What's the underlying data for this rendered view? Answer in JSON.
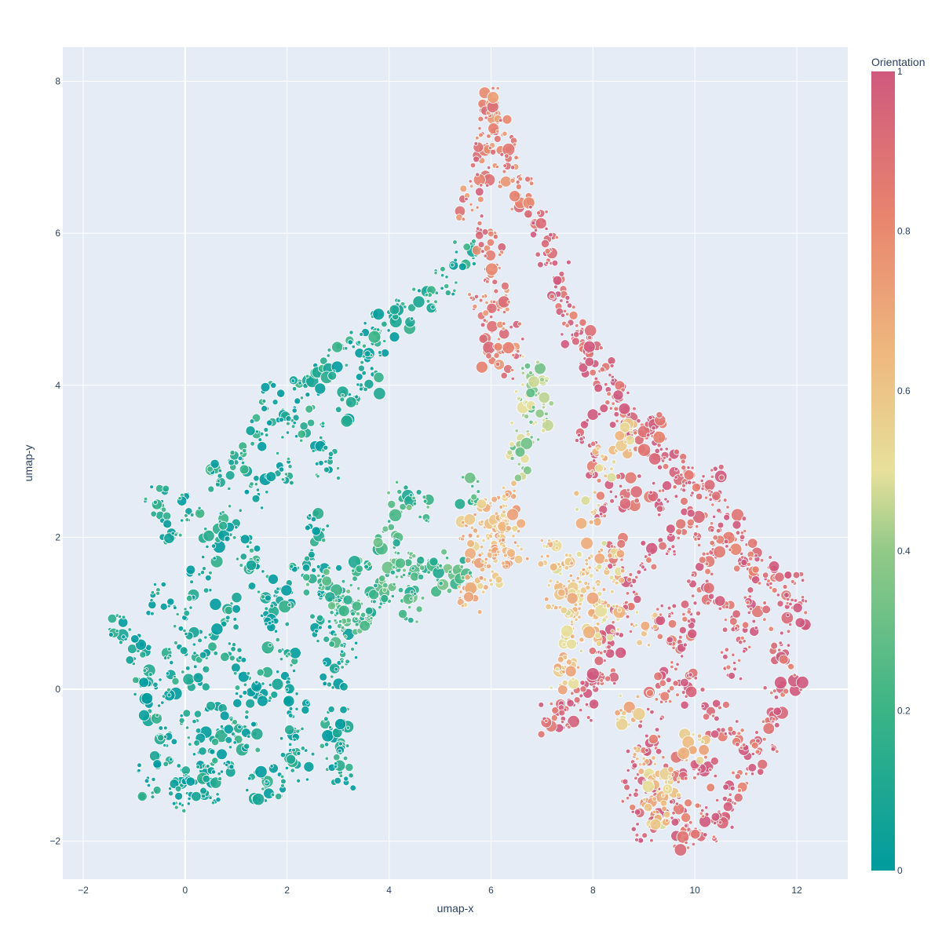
{
  "chart_data": {
    "type": "scatter",
    "xlabel": "umap-x",
    "ylabel": "umap-y",
    "xlim": [
      -2.4,
      13.0
    ],
    "ylim": [
      -2.5,
      8.45
    ],
    "x_ticks": [
      -2,
      0,
      2,
      4,
      6,
      8,
      10,
      12
    ],
    "y_ticks": [
      -2,
      0,
      2,
      4,
      6,
      8
    ],
    "x_tick_labels": [
      "−2",
      "0",
      "2",
      "4",
      "6",
      "8",
      "10",
      "12"
    ],
    "y_tick_labels": [
      "−2",
      "0",
      "2",
      "4",
      "6",
      "8"
    ],
    "colorbar": {
      "title": "Orientation",
      "range": [
        0,
        1
      ],
      "ticks": [
        0,
        0.2,
        0.4,
        0.6,
        0.8,
        1
      ],
      "tick_labels": [
        "0",
        "0.2",
        "0.4",
        "0.6",
        "0.8",
        "1"
      ],
      "colorscale": [
        "#009B9E",
        "#42B7B9",
        "#A7D3D4",
        "#F1F1F1",
        "#E4C1D9",
        "#D691C1",
        "#C75DAB"
      ],
      "colorscale_rendered": [
        "#009B9E",
        "#3BB486",
        "#92C987",
        "#E7E09B",
        "#EEB77E",
        "#E8846E",
        "#CF597E"
      ]
    },
    "clusters": [
      {
        "points": [
          [
            -1.3,
            0.8
          ],
          [
            -0.9,
            0.5
          ],
          [
            -0.8,
            0.1
          ],
          [
            -0.6,
            -0.3
          ],
          [
            -0.4,
            -0.8
          ],
          [
            -0.2,
            -1.2
          ],
          [
            0.0,
            -1.4
          ],
          [
            0.2,
            -1.2
          ],
          [
            0.4,
            -0.8
          ],
          [
            0.6,
            -0.4
          ],
          [
            0.2,
            0.2
          ],
          [
            -0.2,
            0.4
          ],
          [
            0.4,
            0.6
          ],
          [
            0.0,
            0.9
          ],
          [
            -0.5,
            1.2
          ],
          [
            0.3,
            1.4
          ],
          [
            0.8,
            1.0
          ],
          [
            1.0,
            0.4
          ],
          [
            1.2,
            0.0
          ],
          [
            1.0,
            -0.5
          ],
          [
            0.7,
            -0.9
          ],
          [
            0.5,
            -1.3
          ],
          [
            -0.7,
            -1.2
          ],
          [
            -0.4,
            0.0
          ],
          [
            0.1,
            -0.5
          ]
        ],
        "orientation": 0.05
      },
      {
        "points": [
          [
            -0.6,
            2.5
          ],
          [
            -0.3,
            2.1
          ],
          [
            0.1,
            2.4
          ],
          [
            0.5,
            1.9
          ],
          [
            0.9,
            2.2
          ],
          [
            1.2,
            1.8
          ],
          [
            1.4,
            2.6
          ],
          [
            1.1,
            3.0
          ],
          [
            1.5,
            3.4
          ],
          [
            1.7,
            3.8
          ],
          [
            2.0,
            3.5
          ],
          [
            2.3,
            3.9
          ],
          [
            2.6,
            4.1
          ],
          [
            3.0,
            4.3
          ],
          [
            3.4,
            4.5
          ],
          [
            3.7,
            4.6
          ],
          [
            3.9,
            4.8
          ],
          [
            4.3,
            4.9
          ],
          [
            4.7,
            5.1
          ],
          [
            5.1,
            5.4
          ],
          [
            5.5,
            5.7
          ],
          [
            0.7,
            2.8
          ],
          [
            1.9,
            2.9
          ],
          [
            2.5,
            3.3
          ],
          [
            3.2,
            3.7
          ],
          [
            2.8,
            3.0
          ],
          [
            3.6,
            4.0
          ]
        ],
        "orientation": 0.08
      },
      {
        "points": [
          [
            1.4,
            1.5
          ],
          [
            1.6,
            1.1
          ],
          [
            1.8,
            0.7
          ],
          [
            2.0,
            0.3
          ],
          [
            2.2,
            -0.2
          ],
          [
            2.1,
            -0.7
          ],
          [
            2.3,
            -1.0
          ],
          [
            1.8,
            -1.2
          ],
          [
            1.4,
            -1.3
          ],
          [
            1.2,
            -0.6
          ],
          [
            1.6,
            0.0
          ],
          [
            1.9,
            1.3
          ],
          [
            2.3,
            1.7
          ],
          [
            2.6,
            2.1
          ],
          [
            2.8,
            1.4
          ],
          [
            2.7,
            0.8
          ],
          [
            2.9,
            0.2
          ],
          [
            3.0,
            -0.4
          ],
          [
            3.0,
            -0.9
          ],
          [
            3.1,
            -1.1
          ],
          [
            2.9,
            -0.6
          ],
          [
            3.2,
            0.5
          ]
        ],
        "orientation": 0.06
      },
      {
        "points": [
          [
            2.6,
            1.4
          ],
          [
            2.9,
            1.2
          ],
          [
            3.1,
            1.1
          ],
          [
            3.3,
            1.0
          ],
          [
            3.5,
            0.95
          ],
          [
            3.7,
            1.1
          ],
          [
            3.9,
            1.3
          ],
          [
            4.1,
            1.5
          ],
          [
            4.3,
            1.7
          ],
          [
            4.5,
            1.4
          ],
          [
            4.8,
            1.5
          ],
          [
            5.1,
            1.6
          ],
          [
            5.4,
            1.5
          ],
          [
            3.4,
            1.5
          ],
          [
            3.0,
            0.8
          ],
          [
            4.2,
            2.5
          ],
          [
            4.6,
            2.4
          ],
          [
            4.0,
            2.0
          ],
          [
            4.4,
            1.1
          ],
          [
            5.6,
            2.6
          ]
        ],
        "orientation": 0.22
      },
      {
        "points": [
          [
            5.6,
            6.4
          ],
          [
            5.8,
            6.8
          ],
          [
            5.9,
            7.2
          ],
          [
            6.0,
            7.5
          ],
          [
            6.1,
            7.7
          ],
          [
            6.2,
            7.3
          ],
          [
            6.3,
            7.0
          ],
          [
            6.4,
            6.7
          ],
          [
            6.6,
            6.5
          ],
          [
            5.9,
            6.0
          ],
          [
            6.0,
            5.6
          ],
          [
            6.1,
            5.2
          ],
          [
            6.2,
            4.9
          ],
          [
            6.4,
            4.6
          ],
          [
            5.8,
            5.0
          ],
          [
            6.0,
            4.4
          ],
          [
            6.3,
            4.3
          ]
        ],
        "orientation": 0.85
      },
      {
        "points": [
          [
            5.6,
            2.0
          ],
          [
            5.8,
            2.2
          ],
          [
            6.0,
            2.3
          ],
          [
            6.1,
            2.0
          ],
          [
            6.2,
            1.8
          ],
          [
            6.3,
            2.1
          ],
          [
            6.4,
            2.3
          ],
          [
            5.9,
            1.8
          ],
          [
            5.7,
            1.5
          ],
          [
            5.6,
            1.2
          ],
          [
            6.5,
            1.9
          ],
          [
            6.0,
            1.6
          ],
          [
            6.3,
            2.5
          ]
        ],
        "orientation": 0.65
      },
      {
        "points": [
          [
            6.8,
            4.2
          ],
          [
            6.7,
            3.8
          ],
          [
            6.9,
            3.5
          ],
          [
            6.6,
            3.3
          ],
          [
            7.0,
            3.9
          ],
          [
            6.5,
            3.0
          ]
        ],
        "orientation": 0.4
      },
      {
        "points": [
          [
            6.9,
            6.2
          ],
          [
            7.1,
            5.8
          ],
          [
            7.3,
            5.4
          ],
          [
            7.4,
            5.0
          ],
          [
            7.6,
            4.7
          ],
          [
            7.8,
            4.5
          ],
          [
            8.0,
            4.3
          ],
          [
            8.2,
            4.1
          ],
          [
            8.4,
            3.9
          ],
          [
            8.6,
            3.7
          ],
          [
            8.8,
            3.5
          ],
          [
            9.0,
            3.3
          ],
          [
            9.2,
            3.4
          ],
          [
            9.4,
            3.1
          ],
          [
            9.6,
            2.9
          ],
          [
            9.8,
            2.7
          ],
          [
            10.0,
            2.5
          ],
          [
            10.3,
            2.7
          ],
          [
            10.5,
            2.4
          ],
          [
            10.8,
            2.1
          ],
          [
            11.0,
            1.8
          ],
          [
            11.3,
            1.6
          ],
          [
            11.6,
            1.4
          ],
          [
            11.9,
            1.3
          ],
          [
            12.0,
            1.0
          ],
          [
            11.7,
            0.6
          ],
          [
            11.9,
            0.2
          ],
          [
            11.6,
            -0.2
          ],
          [
            11.4,
            -0.6
          ],
          [
            11.1,
            -0.9
          ],
          [
            10.8,
            -1.3
          ],
          [
            10.6,
            -1.6
          ],
          [
            10.3,
            -1.8
          ],
          [
            10.0,
            -1.7
          ],
          [
            9.8,
            -1.9
          ],
          [
            9.5,
            -1.6
          ],
          [
            9.2,
            -1.5
          ],
          [
            9.0,
            -1.8
          ],
          [
            8.8,
            -1.4
          ],
          [
            8.9,
            -1.0
          ],
          [
            9.1,
            -0.6
          ],
          [
            9.3,
            -0.2
          ],
          [
            9.5,
            0.1
          ],
          [
            9.7,
            0.5
          ],
          [
            9.9,
            0.9
          ],
          [
            10.1,
            1.3
          ],
          [
            10.3,
            1.7
          ],
          [
            10.5,
            2.0
          ],
          [
            9.9,
            2.2
          ],
          [
            9.5,
            2.0
          ],
          [
            9.1,
            1.7
          ],
          [
            8.8,
            1.3
          ],
          [
            8.6,
            0.9
          ],
          [
            8.4,
            0.6
          ],
          [
            8.2,
            0.3
          ],
          [
            8.0,
            0.0
          ],
          [
            7.8,
            -0.2
          ],
          [
            7.5,
            -0.3
          ],
          [
            7.2,
            -0.4
          ],
          [
            8.5,
            1.8
          ],
          [
            8.3,
            2.4
          ],
          [
            8.1,
            2.9
          ],
          [
            7.9,
            3.4
          ],
          [
            8.7,
            2.6
          ],
          [
            9.3,
            2.5
          ],
          [
            10.0,
            0.0
          ],
          [
            10.4,
            -0.4
          ],
          [
            10.7,
            0.3
          ],
          [
            11.0,
            0.7
          ],
          [
            10.9,
            -0.6
          ],
          [
            10.2,
            -1.1
          ],
          [
            9.6,
            -1.0
          ],
          [
            11.2,
            1.1
          ],
          [
            9.4,
            0.9
          ],
          [
            10.6,
            1.0
          ]
        ],
        "orientation": 0.95
      },
      {
        "points": [
          [
            7.2,
            1.8
          ],
          [
            7.4,
            1.5
          ],
          [
            7.6,
            1.2
          ],
          [
            7.8,
            1.0
          ],
          [
            8.0,
            0.8
          ],
          [
            8.2,
            1.1
          ],
          [
            7.5,
            0.8
          ],
          [
            7.3,
            1.2
          ],
          [
            7.7,
            1.6
          ],
          [
            7.9,
            1.4
          ],
          [
            8.1,
            1.7
          ],
          [
            7.6,
            0.5
          ],
          [
            8.3,
            0.9
          ],
          [
            7.4,
            0.2
          ],
          [
            8.7,
            -0.3
          ],
          [
            9.0,
            -1.0
          ],
          [
            9.2,
            -1.3
          ],
          [
            9.6,
            -1.2
          ],
          [
            10.0,
            -0.8
          ],
          [
            8.4,
            1.6
          ],
          [
            7.9,
            2.4
          ],
          [
            8.2,
            3.0
          ],
          [
            8.6,
            3.3
          ],
          [
            9.0,
            0.8
          ],
          [
            9.3,
            -1.6
          ]
        ],
        "orientation": 0.6
      }
    ]
  }
}
